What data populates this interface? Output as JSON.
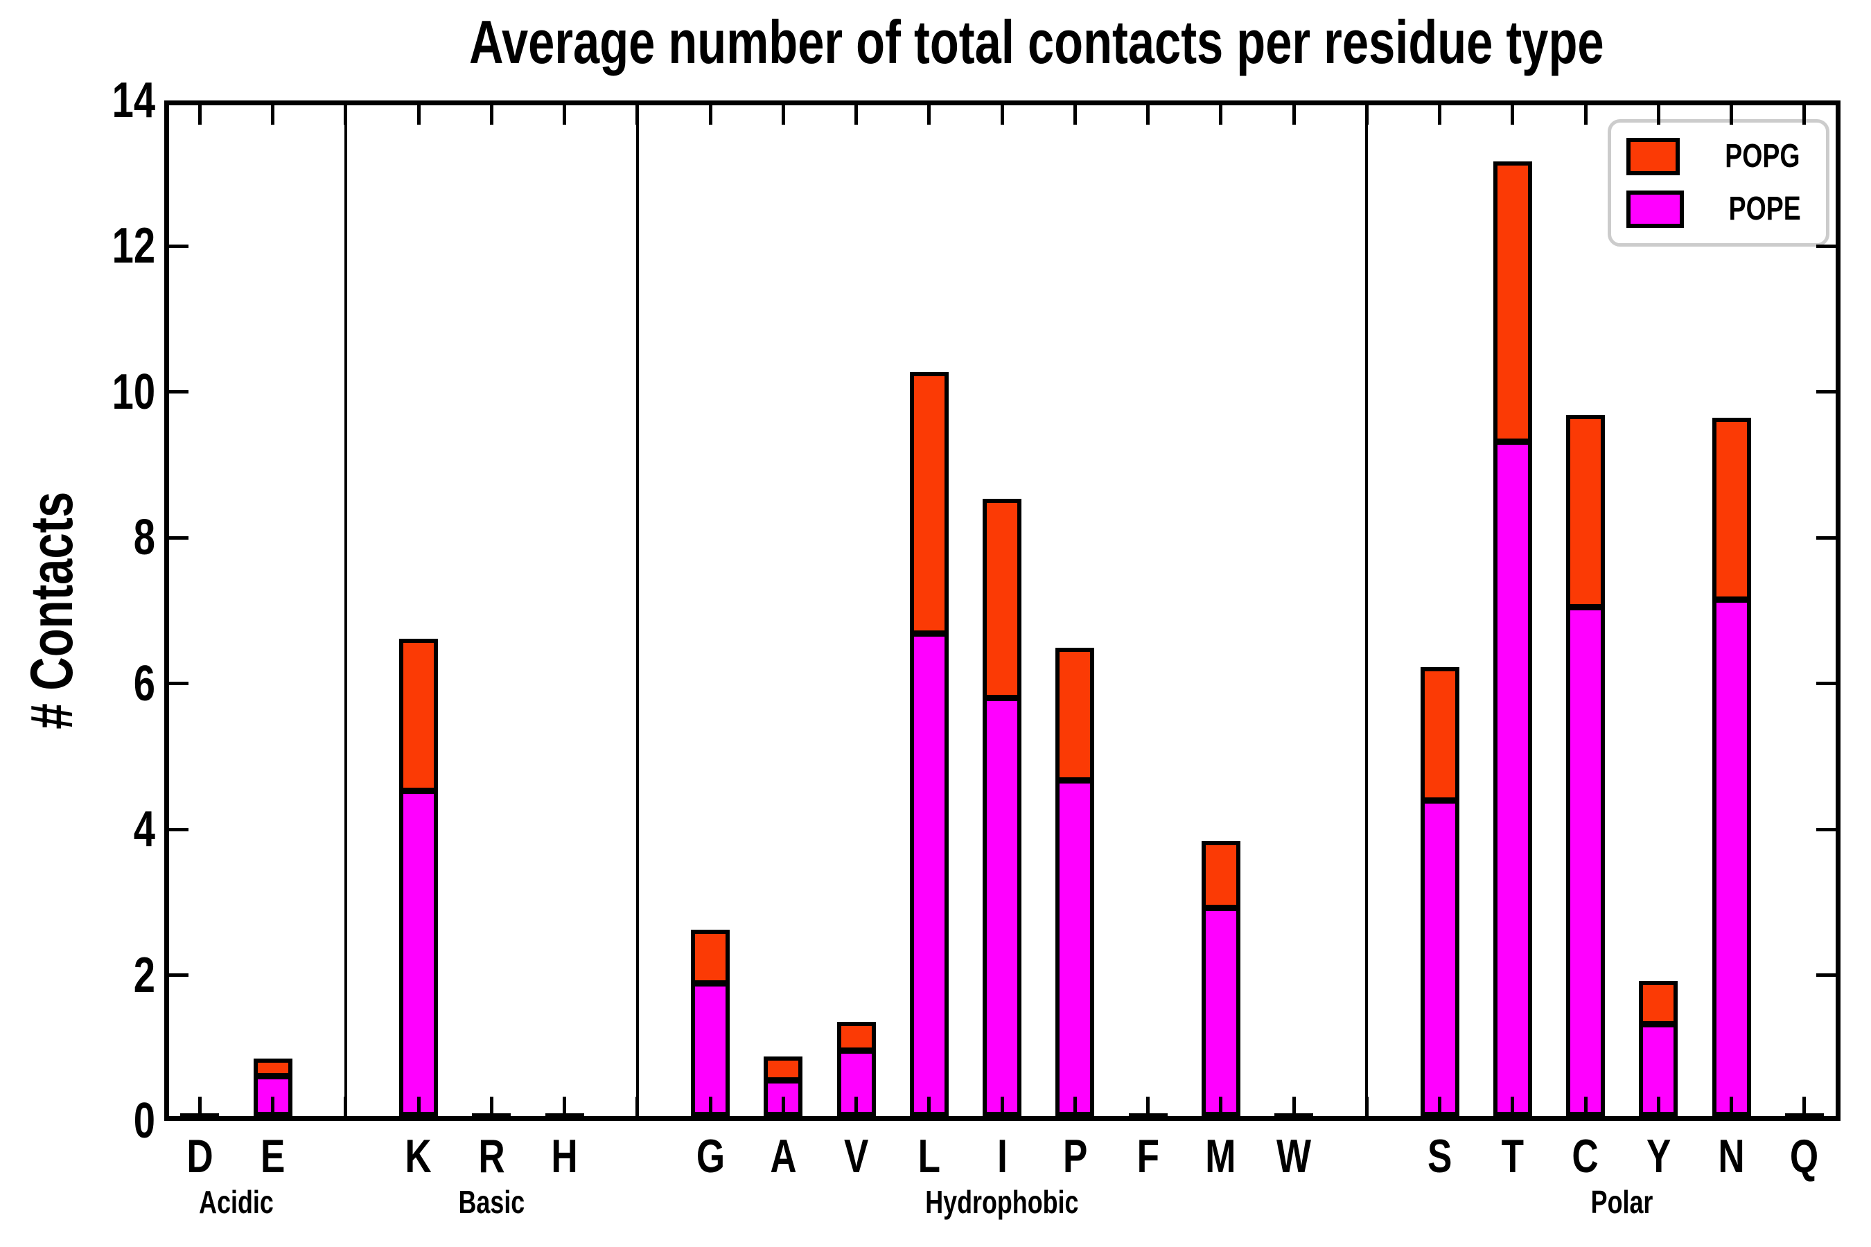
{
  "title": "Average number of total contacts per residue type",
  "ylabel": "# Contacts",
  "legend": {
    "items": [
      {
        "label": "POPG",
        "color": "#fb3a05"
      },
      {
        "label": "POPE",
        "color": "#ff00ff"
      }
    ]
  },
  "axis": {
    "yticks": [
      "0",
      "2",
      "4",
      "6",
      "8",
      "10",
      "12",
      "14"
    ],
    "ymax": 14
  },
  "chart_data": {
    "type": "bar",
    "stacked": true,
    "title": "Average number of total contacts per residue type",
    "xlabel": "",
    "ylabel": "# Contacts",
    "ylim": [
      0,
      14
    ],
    "grid": false,
    "legend_position": "upper right",
    "groups": [
      {
        "label": "Acidic",
        "categories": [
          "D",
          "E"
        ]
      },
      {
        "label": "Basic",
        "categories": [
          "K",
          "R",
          "H"
        ]
      },
      {
        "label": "Hydrophobic",
        "categories": [
          "G",
          "A",
          "V",
          "L",
          "I",
          "P",
          "F",
          "M",
          "W"
        ]
      },
      {
        "label": "Polar",
        "categories": [
          "S",
          "T",
          "C",
          "Y",
          "N",
          "Q"
        ]
      }
    ],
    "categories": [
      "D",
      "E",
      "K",
      "R",
      "H",
      "G",
      "A",
      "V",
      "L",
      "I",
      "P",
      "F",
      "M",
      "W",
      "S",
      "T",
      "C",
      "Y",
      "N",
      "Q"
    ],
    "series": [
      {
        "name": "POPE",
        "color": "#ff00ff",
        "values": [
          0.02,
          0.56,
          4.48,
          0.02,
          0.02,
          1.83,
          0.5,
          0.91,
          6.63,
          5.75,
          4.62,
          0.02,
          2.87,
          0.02,
          4.34,
          9.27,
          7.0,
          1.27,
          7.1,
          0.02
        ]
      },
      {
        "name": "POPG",
        "color": "#fb3a05",
        "values": [
          0.01,
          0.23,
          2.07,
          0.01,
          0.01,
          0.72,
          0.31,
          0.38,
          3.57,
          2.72,
          1.81,
          0.01,
          0.9,
          0.01,
          1.82,
          3.83,
          2.62,
          0.58,
          2.48,
          0.01
        ]
      }
    ]
  }
}
